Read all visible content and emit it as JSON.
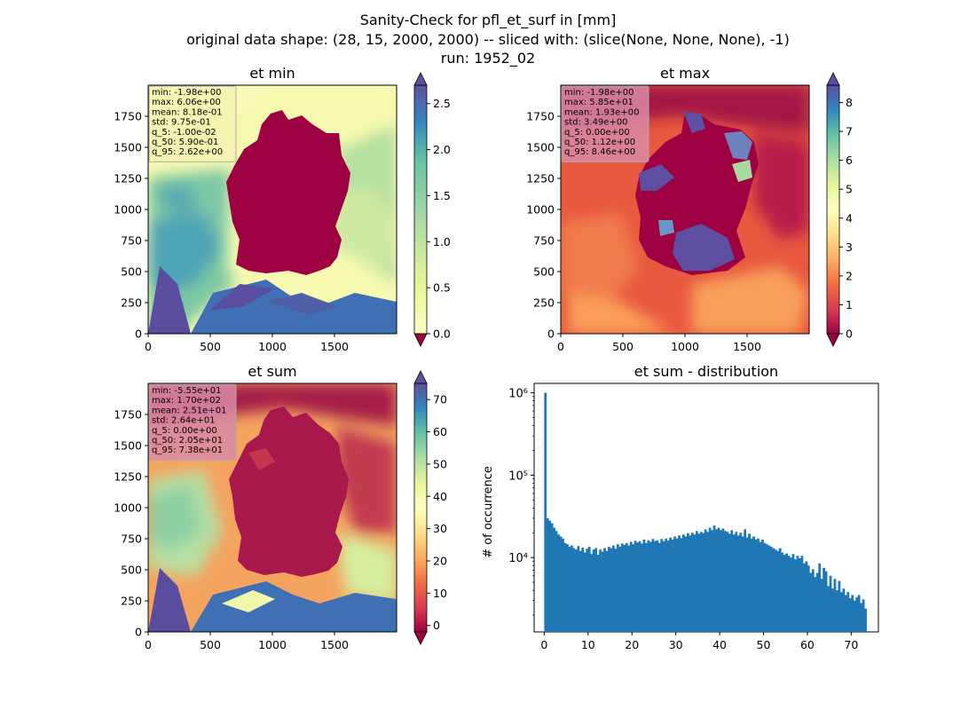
{
  "figure": {
    "suptitle_lines": [
      "Sanity-Check for pfl_et_surf in [mm]",
      "original data shape: (28, 15, 2000, 2000) -- sliced with: (slice(None, None, None), -1)",
      "run: 1952_02"
    ]
  },
  "chart_data": [
    {
      "type": "heatmap",
      "title": "et min",
      "colormap": "Spectral",
      "x_ticks": [
        "0",
        "500",
        "1000",
        "1500"
      ],
      "y_ticks": [
        "0",
        "250",
        "500",
        "750",
        "1000",
        "1250",
        "1500",
        "1750"
      ],
      "xlim": [
        0,
        2000
      ],
      "ylim": [
        0,
        2000
      ],
      "colorbar": {
        "ticks": [
          "0.0",
          "0.5",
          "1.0",
          "1.5",
          "2.0",
          "2.5"
        ],
        "range": [
          0,
          2.7
        ],
        "extend": "both"
      },
      "stats": [
        "min: -1.98e+00",
        "max: 6.06e+00",
        "mean: 8.18e-01",
        "std: 9.75e-01",
        "q_5: -1.00e-02",
        "q_50: 5.90e-01",
        "q_95: 2.62e+00"
      ],
      "stats_box_color": "#f3f3b0"
    },
    {
      "type": "heatmap",
      "title": "et max",
      "colormap": "Spectral",
      "x_ticks": [
        "0",
        "500",
        "1000",
        "1500"
      ],
      "y_ticks": [
        "0",
        "250",
        "500",
        "750",
        "1000",
        "1250",
        "1500",
        "1750"
      ],
      "xlim": [
        0,
        2000
      ],
      "ylim": [
        0,
        2000
      ],
      "colorbar": {
        "ticks": [
          "0",
          "1",
          "2",
          "3",
          "4",
          "5",
          "6",
          "7",
          "8"
        ],
        "range": [
          0,
          8.6
        ],
        "extend": "both"
      },
      "stats": [
        "min: -1.98e+00",
        "max: 5.85e+01",
        "mean: 1.93e+00",
        "std: 3.49e+00",
        "q_5: 0.00e+00",
        "q_50: 1.12e+00",
        "q_95: 8.46e+00"
      ],
      "stats_box_color": "#d98aa6"
    },
    {
      "type": "heatmap",
      "title": "et sum",
      "colormap": "Spectral",
      "x_ticks": [
        "0",
        "500",
        "1000",
        "1500"
      ],
      "y_ticks": [
        "0",
        "250",
        "500",
        "750",
        "1000",
        "1250",
        "1500",
        "1750"
      ],
      "xlim": [
        0,
        2000
      ],
      "ylim": [
        0,
        2000
      ],
      "colorbar": {
        "ticks": [
          "0",
          "10",
          "20",
          "30",
          "40",
          "50",
          "60",
          "70"
        ],
        "range": [
          -2,
          75
        ],
        "extend": "both"
      },
      "stats": [
        "min: -5.55e+01",
        "max: 1.70e+02",
        "mean: 2.51e+01",
        "std: 2.64e+01",
        "q_5: 0.00e+00",
        "q_50: 2.05e+01",
        "q_95: 7.38e+01"
      ],
      "stats_box_color": "#d98aa6"
    },
    {
      "type": "bar",
      "title": "et sum - distribution",
      "ylabel": "# of occurrence",
      "xlabel": "",
      "y_scale": "log",
      "bar_color": "#1f77b4",
      "xlim": [
        -2.3,
        76.2
      ],
      "ylim": [
        1250,
        1300000
      ],
      "x_ticks": [
        0,
        10,
        20,
        30,
        40,
        50,
        60,
        70
      ],
      "y_ticks": [
        10000,
        100000,
        1000000
      ],
      "y_tick_labels": [
        "10⁴",
        "10⁵",
        "10⁶"
      ],
      "bin_width": 0.5,
      "bin_starts": [
        0,
        0.5,
        1,
        1.5,
        2,
        2.5,
        3,
        3.5,
        4,
        4.5,
        5,
        5.5,
        6,
        6.5,
        7,
        7.5,
        8,
        8.5,
        9,
        9.5,
        10,
        10.5,
        11,
        11.5,
        12,
        12.5,
        13,
        13.5,
        14,
        14.5,
        15,
        15.5,
        16,
        16.5,
        17,
        17.5,
        18,
        18.5,
        19,
        19.5,
        20,
        20.5,
        21,
        21.5,
        22,
        22.5,
        23,
        23.5,
        24,
        24.5,
        25,
        25.5,
        26,
        26.5,
        27,
        27.5,
        28,
        28.5,
        29,
        29.5,
        30,
        30.5,
        31,
        31.5,
        32,
        32.5,
        33,
        33.5,
        34,
        34.5,
        35,
        35.5,
        36,
        36.5,
        37,
        37.5,
        38,
        38.5,
        39,
        39.5,
        40,
        40.5,
        41,
        41.5,
        42,
        42.5,
        43,
        43.5,
        44,
        44.5,
        45,
        45.5,
        46,
        46.5,
        47,
        47.5,
        48,
        48.5,
        49,
        49.5,
        50,
        50.5,
        51,
        51.5,
        52,
        52.5,
        53,
        53.5,
        54,
        54.5,
        55,
        55.5,
        56,
        56.5,
        57,
        57.5,
        58,
        58.5,
        59,
        59.5,
        60,
        60.5,
        61,
        61.5,
        62,
        62.5,
        63,
        63.5,
        64,
        64.5,
        65,
        65.5,
        66,
        66.5,
        67,
        67.5,
        68,
        68.5,
        69,
        69.5,
        70,
        70.5,
        71,
        71.5,
        72,
        72.5,
        73,
        73.5
      ],
      "values": [
        1000000,
        30000,
        28000,
        26000,
        23000,
        21000,
        19000,
        18000,
        17000,
        15000,
        14500,
        13500,
        14000,
        13000,
        12500,
        13800,
        12000,
        13200,
        11500,
        12800,
        13500,
        11000,
        12500,
        13000,
        10800,
        12500,
        11800,
        13000,
        12000,
        13500,
        13000,
        14000,
        12800,
        14500,
        13500,
        14800,
        14200,
        15000,
        14000,
        15500,
        14500,
        16000,
        15200,
        15800,
        14800,
        16500,
        15000,
        16200,
        15500,
        16800,
        15800,
        16200,
        15000,
        16800,
        15800,
        17000,
        16000,
        17500,
        16500,
        18000,
        17000,
        18500,
        17200,
        19000,
        18000,
        19800,
        18500,
        20000,
        19000,
        21000,
        19500,
        20500,
        19800,
        22000,
        20500,
        23000,
        21500,
        24500,
        22000,
        23000,
        21500,
        22500,
        21000,
        20500,
        19500,
        21500,
        19000,
        20500,
        18500,
        20000,
        18000,
        22000,
        17500,
        19500,
        17000,
        18000,
        16500,
        17000,
        15500,
        16500,
        15000,
        14500,
        14000,
        13500,
        13000,
        12500,
        12000,
        13000,
        11500,
        10800,
        11200,
        10500,
        10000,
        11000,
        9500,
        10500,
        9800,
        10500,
        8500,
        9000,
        8000,
        6500,
        7200,
        5800,
        6500,
        8500,
        5500,
        7500,
        6800,
        4500,
        6000,
        4200,
        5500,
        4000,
        5200,
        3800,
        4200,
        3500,
        3800,
        3200,
        3500,
        3000,
        3300,
        3500,
        2800,
        3100,
        2400
      ]
    }
  ]
}
